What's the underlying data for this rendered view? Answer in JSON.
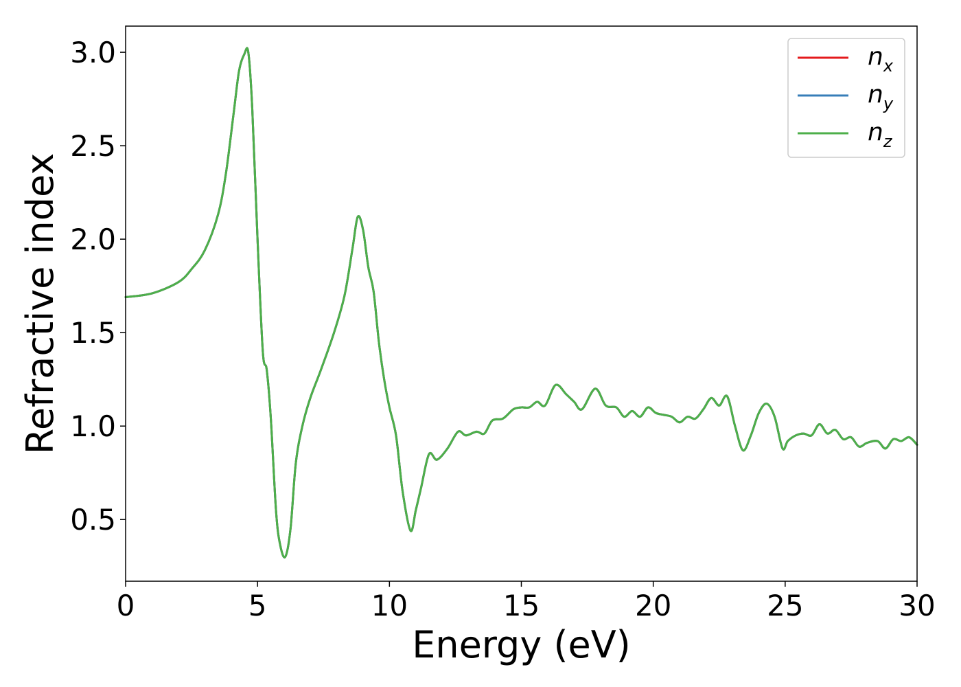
{
  "chart_data": {
    "type": "line",
    "xlabel": "Energy (eV)",
    "ylabel": "Refractive index",
    "xlim": [
      0,
      30
    ],
    "ylim": [
      0.17,
      3.14
    ],
    "xticks": [
      0,
      5,
      10,
      15,
      20,
      25,
      30
    ],
    "xtick_labels": [
      "0",
      "5",
      "10",
      "15",
      "20",
      "25",
      "30"
    ],
    "yticks": [
      0.5,
      1.0,
      1.5,
      2.0,
      2.5,
      3.0
    ],
    "ytick_labels": [
      "0.5",
      "1.0",
      "1.5",
      "2.0",
      "2.5",
      "3.0"
    ],
    "grid": false,
    "legend_position": "top-right",
    "x": [
      0,
      1,
      2,
      2.5,
      3,
      3.5,
      3.8,
      4.1,
      4.3,
      4.5,
      4.65,
      4.8,
      5.0,
      5.2,
      5.35,
      5.5,
      5.7,
      5.85,
      6.05,
      6.25,
      6.45,
      6.7,
      7.0,
      7.4,
      7.9,
      8.3,
      8.6,
      8.8,
      9.0,
      9.2,
      9.4,
      9.6,
      9.8,
      10.0,
      10.25,
      10.5,
      10.8,
      11.0,
      11.2,
      11.5,
      11.8,
      12.2,
      12.6,
      12.9,
      13.3,
      13.6,
      13.9,
      14.3,
      14.7,
      15.0,
      15.3,
      15.6,
      15.9,
      16.3,
      16.7,
      17.0,
      17.3,
      17.8,
      18.2,
      18.6,
      18.9,
      19.2,
      19.5,
      19.8,
      20.1,
      20.4,
      20.7,
      21.0,
      21.3,
      21.6,
      21.9,
      22.2,
      22.5,
      22.8,
      23.1,
      23.4,
      23.7,
      24.0,
      24.3,
      24.6,
      24.9,
      25.1,
      25.4,
      25.7,
      26.0,
      26.3,
      26.6,
      26.9,
      27.2,
      27.5,
      27.8,
      28.1,
      28.5,
      28.8,
      29.1,
      29.4,
      29.7,
      30.0
    ],
    "series": [
      {
        "name": "n_x",
        "color": "#e41a1c",
        "values": [
          1.69,
          1.71,
          1.77,
          1.84,
          1.94,
          2.13,
          2.35,
          2.68,
          2.9,
          2.99,
          3.0,
          2.7,
          2.0,
          1.4,
          1.3,
          1.05,
          0.55,
          0.37,
          0.3,
          0.45,
          0.8,
          1.0,
          1.15,
          1.3,
          1.5,
          1.7,
          1.95,
          2.12,
          2.05,
          1.85,
          1.72,
          1.45,
          1.25,
          1.1,
          0.95,
          0.65,
          0.44,
          0.55,
          0.67,
          0.85,
          0.82,
          0.88,
          0.97,
          0.95,
          0.97,
          0.96,
          1.03,
          1.04,
          1.09,
          1.1,
          1.1,
          1.13,
          1.11,
          1.22,
          1.17,
          1.13,
          1.09,
          1.2,
          1.11,
          1.1,
          1.05,
          1.08,
          1.05,
          1.1,
          1.07,
          1.06,
          1.05,
          1.02,
          1.05,
          1.04,
          1.09,
          1.15,
          1.11,
          1.16,
          1.0,
          0.87,
          0.95,
          1.07,
          1.12,
          1.05,
          0.88,
          0.92,
          0.95,
          0.96,
          0.95,
          1.01,
          0.96,
          0.98,
          0.93,
          0.94,
          0.89,
          0.91,
          0.92,
          0.88,
          0.93,
          0.92,
          0.94,
          0.9
        ]
      },
      {
        "name": "n_y",
        "color": "#377eb8",
        "values": [
          1.69,
          1.71,
          1.77,
          1.84,
          1.94,
          2.13,
          2.35,
          2.68,
          2.9,
          2.99,
          3.0,
          2.7,
          2.0,
          1.4,
          1.3,
          1.05,
          0.55,
          0.37,
          0.3,
          0.45,
          0.8,
          1.0,
          1.15,
          1.3,
          1.5,
          1.7,
          1.95,
          2.12,
          2.05,
          1.85,
          1.72,
          1.45,
          1.25,
          1.1,
          0.95,
          0.65,
          0.44,
          0.55,
          0.67,
          0.85,
          0.82,
          0.88,
          0.97,
          0.95,
          0.97,
          0.96,
          1.03,
          1.04,
          1.09,
          1.1,
          1.1,
          1.13,
          1.11,
          1.22,
          1.17,
          1.13,
          1.09,
          1.2,
          1.11,
          1.1,
          1.05,
          1.08,
          1.05,
          1.1,
          1.07,
          1.06,
          1.05,
          1.02,
          1.05,
          1.04,
          1.09,
          1.15,
          1.11,
          1.16,
          1.0,
          0.87,
          0.95,
          1.07,
          1.12,
          1.05,
          0.88,
          0.92,
          0.95,
          0.96,
          0.95,
          1.01,
          0.96,
          0.98,
          0.93,
          0.94,
          0.89,
          0.91,
          0.92,
          0.88,
          0.93,
          0.92,
          0.94,
          0.9
        ]
      },
      {
        "name": "n_z",
        "color": "#4daf4a",
        "values": [
          1.69,
          1.71,
          1.77,
          1.84,
          1.94,
          2.13,
          2.35,
          2.68,
          2.9,
          2.99,
          3.0,
          2.7,
          2.0,
          1.4,
          1.3,
          1.05,
          0.55,
          0.37,
          0.3,
          0.45,
          0.8,
          1.0,
          1.15,
          1.3,
          1.5,
          1.7,
          1.95,
          2.12,
          2.05,
          1.85,
          1.72,
          1.45,
          1.25,
          1.1,
          0.95,
          0.65,
          0.44,
          0.55,
          0.67,
          0.85,
          0.82,
          0.88,
          0.97,
          0.95,
          0.97,
          0.96,
          1.03,
          1.04,
          1.09,
          1.1,
          1.1,
          1.13,
          1.11,
          1.22,
          1.17,
          1.13,
          1.09,
          1.2,
          1.11,
          1.1,
          1.05,
          1.08,
          1.05,
          1.1,
          1.07,
          1.06,
          1.05,
          1.02,
          1.05,
          1.04,
          1.09,
          1.15,
          1.11,
          1.16,
          1.0,
          0.87,
          0.95,
          1.07,
          1.12,
          1.05,
          0.88,
          0.92,
          0.95,
          0.96,
          0.95,
          1.01,
          0.96,
          0.98,
          0.93,
          0.94,
          0.89,
          0.91,
          0.92,
          0.88,
          0.93,
          0.92,
          0.94,
          0.9
        ]
      }
    ],
    "legend": [
      {
        "base": "n",
        "sub": "x",
        "color": "#e41a1c"
      },
      {
        "base": "n",
        "sub": "y",
        "color": "#377eb8"
      },
      {
        "base": "n",
        "sub": "z",
        "color": "#4daf4a"
      }
    ]
  }
}
